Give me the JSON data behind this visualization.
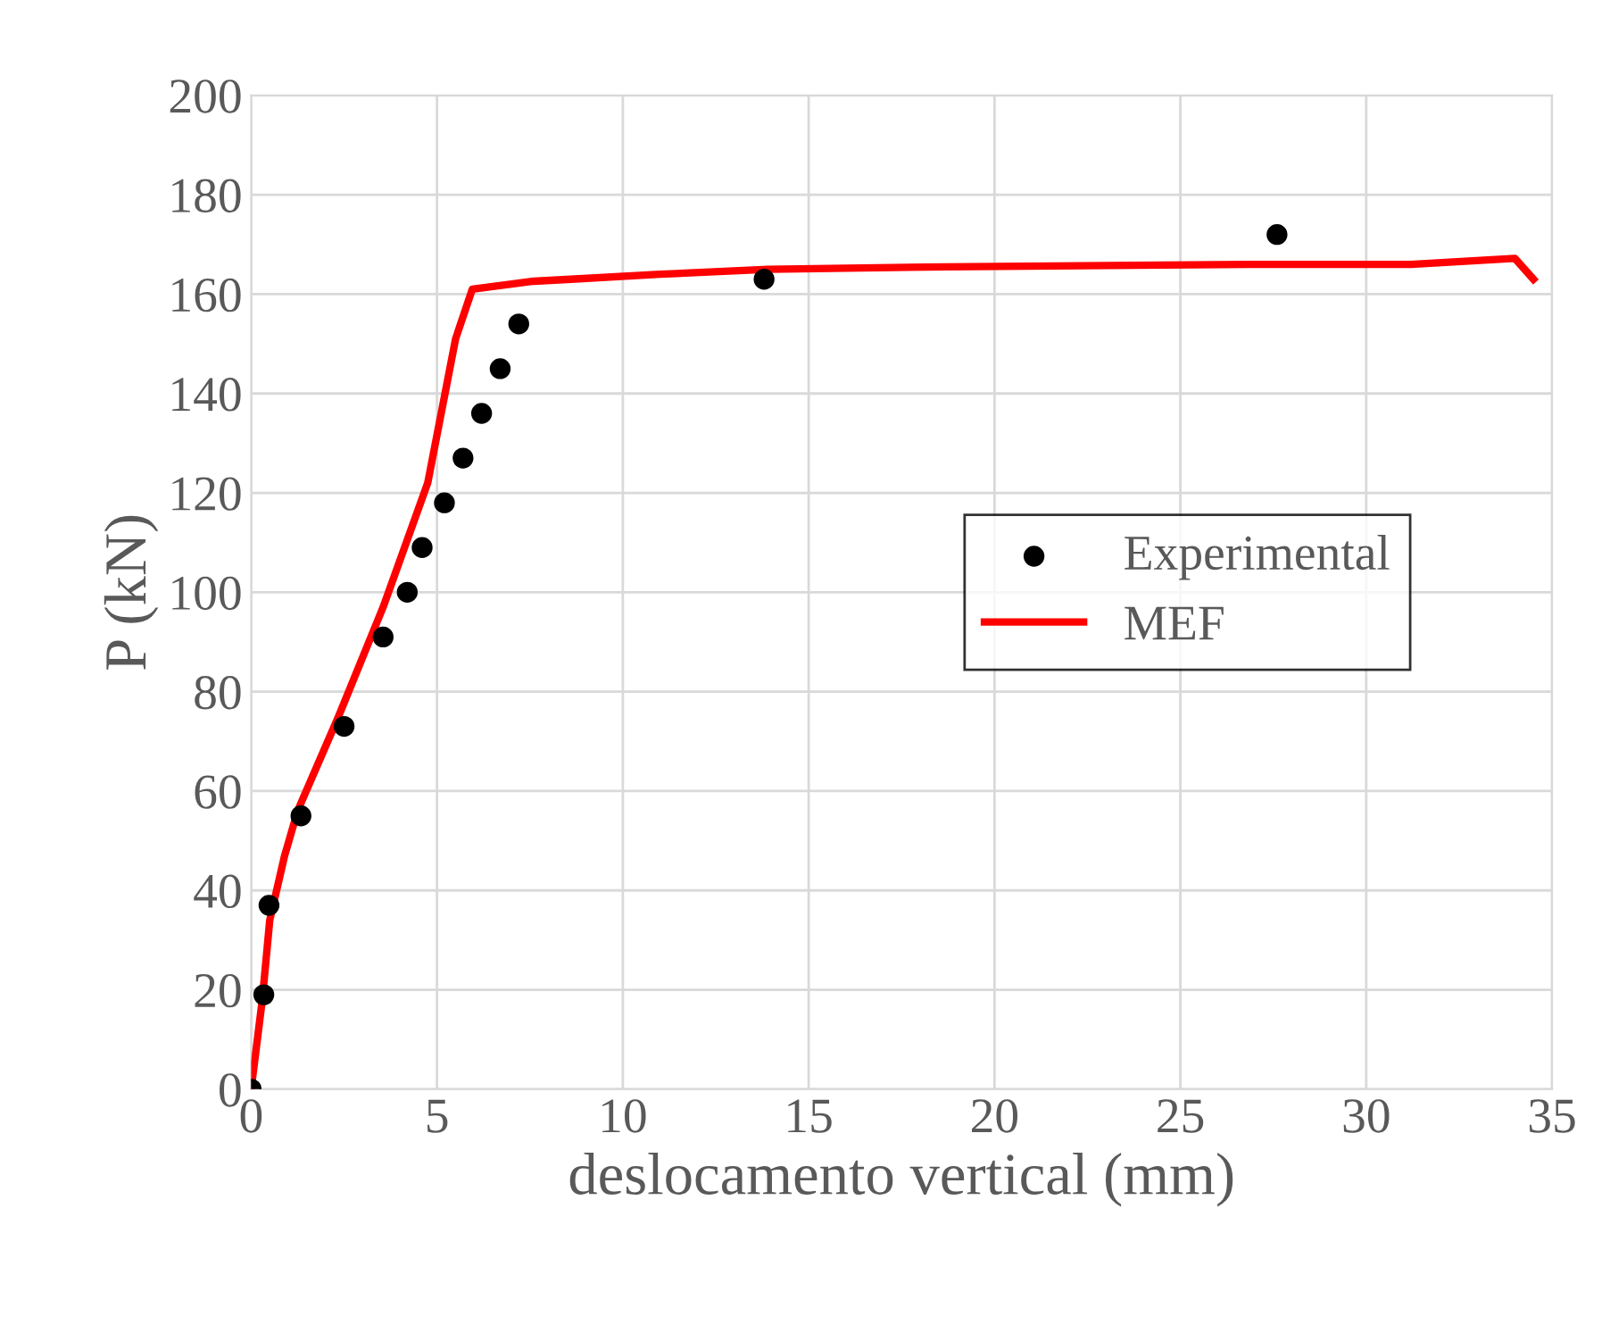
{
  "chart_data": {
    "type": "scatter",
    "xlabel": "deslocamento vertical (mm)",
    "ylabel": "P (kN)",
    "xlim": [
      0,
      35
    ],
    "xticks": [
      0,
      5,
      10,
      15,
      20,
      25,
      30,
      35
    ],
    "ylim": [
      0,
      200
    ],
    "yticks": [
      0,
      20,
      40,
      60,
      80,
      100,
      120,
      140,
      160,
      180,
      200
    ],
    "grid": true,
    "legend": "right",
    "series": [
      {
        "name": "Experimental",
        "color": "#000000",
        "marker": "circle",
        "x": [
          0,
          0.34,
          0.48,
          1.34,
          2.5,
          3.55,
          4.2,
          4.6,
          5.2,
          5.7,
          6.2,
          6.7,
          7.2,
          13.8,
          27.6
        ],
        "values": [
          0,
          19,
          37,
          55,
          73,
          91,
          100,
          109,
          118,
          127,
          136,
          145,
          154,
          163,
          172
        ]
      },
      {
        "name": "MEF",
        "type": "line",
        "color": "#ff0000",
        "line_style": "solid",
        "x": [
          0,
          0.3,
          0.5,
          0.9,
          1.25,
          2.35,
          3.55,
          4.75,
          5.5,
          5.95,
          7.6,
          8.6,
          11,
          13.9,
          18.7,
          26.8,
          31.2,
          34,
          34.5
        ],
        "values": [
          0,
          18,
          34,
          47,
          56,
          75,
          97,
          122,
          151,
          161,
          162.6,
          163,
          164,
          165,
          165.5,
          166,
          166,
          167.2,
          163
        ]
      }
    ]
  }
}
